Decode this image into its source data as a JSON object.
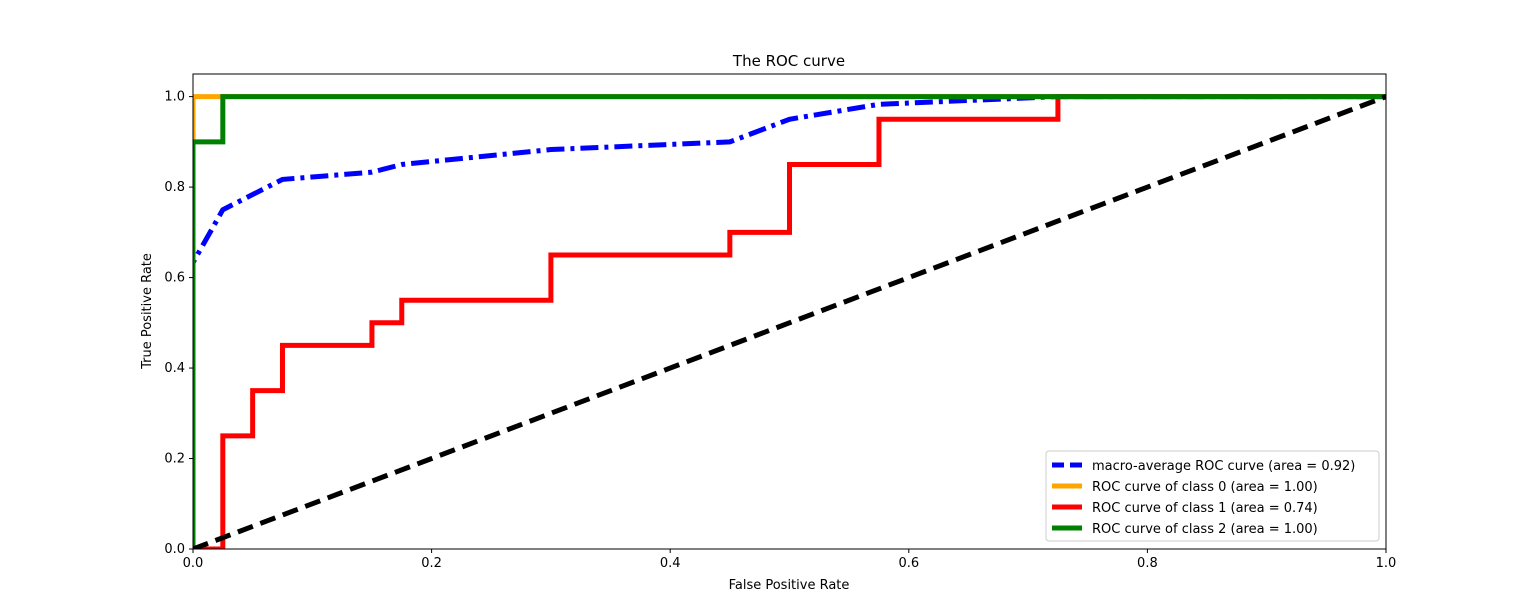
{
  "chart_data": {
    "type": "line",
    "title": "The ROC curve",
    "xlabel": "False Positive Rate",
    "ylabel": "True Positive Rate",
    "xlim": [
      0.0,
      1.0
    ],
    "ylim": [
      0.0,
      1.05
    ],
    "xticks": [
      "0.0",
      "0.2",
      "0.4",
      "0.6",
      "0.8",
      "1.0"
    ],
    "yticks": [
      "0.0",
      "0.2",
      "0.4",
      "0.6",
      "0.8",
      "1.0"
    ],
    "grid": false,
    "legend_position": "lower-right",
    "series": [
      {
        "name": "macro-average ROC curve (area = 0.92)",
        "color": "#0000ff",
        "style": "dashdot",
        "x": [
          0.0,
          0.0,
          0.025,
          0.075,
          0.15,
          0.175,
          0.3,
          0.45,
          0.5,
          0.575,
          0.725,
          1.0
        ],
        "y": [
          0.0,
          0.633,
          0.75,
          0.817,
          0.833,
          0.85,
          0.883,
          0.9,
          0.95,
          0.983,
          1.0,
          1.0
        ]
      },
      {
        "name": "ROC curve of class 0 (area = 1.00)",
        "color": "#ffa500",
        "style": "solid",
        "x": [
          0.0,
          0.0,
          0.025,
          1.0
        ],
        "y": [
          0.0,
          1.0,
          1.0,
          1.0
        ]
      },
      {
        "name": "ROC curve of class 1 (area = 0.74)",
        "color": "#ff0000",
        "style": "solid",
        "x": [
          0.0,
          0.025,
          0.025,
          0.05,
          0.05,
          0.075,
          0.075,
          0.15,
          0.15,
          0.175,
          0.175,
          0.3,
          0.3,
          0.45,
          0.45,
          0.5,
          0.5,
          0.575,
          0.575,
          0.725,
          0.725,
          1.0
        ],
        "y": [
          0.0,
          0.0,
          0.25,
          0.25,
          0.35,
          0.35,
          0.45,
          0.45,
          0.5,
          0.5,
          0.55,
          0.55,
          0.65,
          0.65,
          0.7,
          0.7,
          0.85,
          0.85,
          0.95,
          0.95,
          1.0,
          1.0
        ]
      },
      {
        "name": "ROC curve of class 2 (area = 1.00)",
        "color": "#008000",
        "style": "solid",
        "x": [
          0.0,
          0.0,
          0.025,
          0.025,
          1.0
        ],
        "y": [
          0.0,
          0.9,
          0.9,
          1.0,
          1.0
        ]
      }
    ],
    "reference_line": {
      "color": "#000000",
      "style": "dashed",
      "x": [
        0.0,
        1.0
      ],
      "y": [
        0.0,
        1.0
      ]
    }
  }
}
